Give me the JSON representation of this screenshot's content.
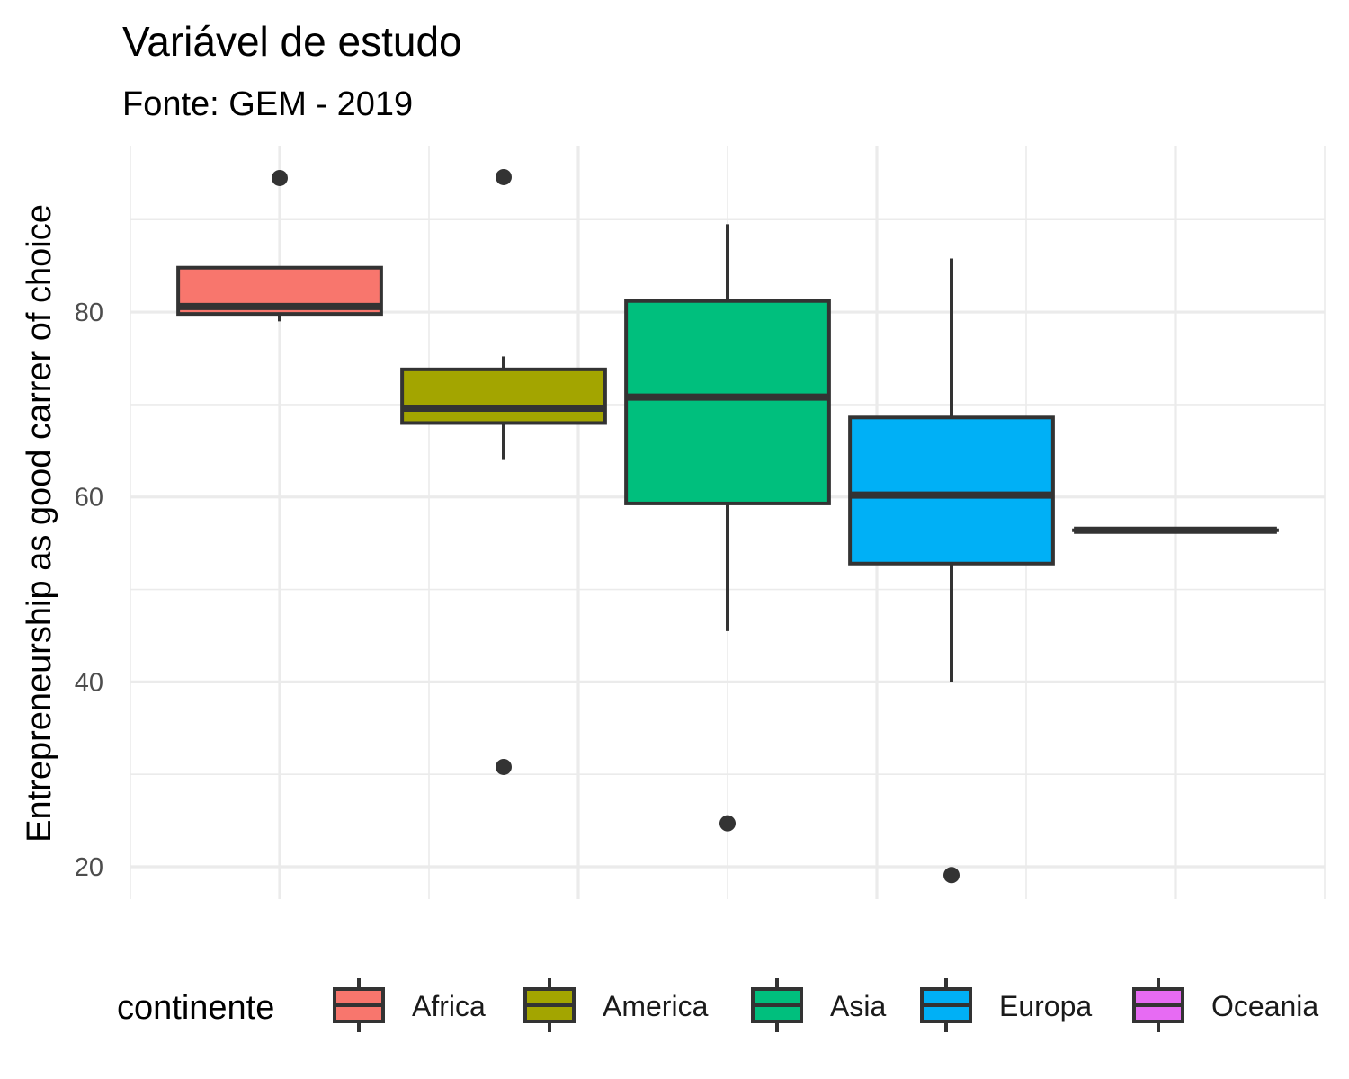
{
  "chart_data": {
    "type": "boxplot",
    "title": "Variável de estudo",
    "subtitle": "Fonte: GEM - 2019",
    "xlabel": "",
    "ylabel": "Entrepreneurship as good carrer of choice",
    "ylim": [
      16.5,
      98
    ],
    "yticks": [
      20,
      40,
      60,
      80
    ],
    "x_ticks_shown": false,
    "grid": true,
    "legend": {
      "title": "continente",
      "position": "bottom",
      "entries": [
        "Africa",
        "America",
        "Asia",
        "Europa",
        "Oceania"
      ]
    },
    "series": [
      {
        "name": "Africa",
        "color": "#F8766D",
        "x_center": 0.5,
        "width": 0.68,
        "whisker_low": 79.0,
        "q1": 79.8,
        "median": 80.6,
        "q3": 84.8,
        "whisker_high": 84.8,
        "outliers": [
          94.5
        ]
      },
      {
        "name": "America",
        "color": "#A3A500",
        "x_center": 1.25,
        "width": 0.68,
        "whisker_low": 64.0,
        "q1": 68.0,
        "median": 69.6,
        "q3": 73.8,
        "whisker_high": 75.2,
        "outliers": [
          94.6,
          30.8
        ]
      },
      {
        "name": "Asia",
        "color": "#00BF7D",
        "x_center": 2.0,
        "width": 0.68,
        "whisker_low": 45.5,
        "q1": 59.3,
        "median": 70.8,
        "q3": 81.2,
        "whisker_high": 89.5,
        "outliers": [
          24.7
        ]
      },
      {
        "name": "Europa",
        "color": "#00B0F6",
        "x_center": 2.75,
        "width": 0.68,
        "whisker_low": 40.0,
        "q1": 52.8,
        "median": 60.2,
        "q3": 68.6,
        "whisker_high": 85.8,
        "outliers": [
          19.1
        ]
      },
      {
        "name": "Oceania",
        "color": "#E76BF3",
        "x_center": 3.5,
        "width": 0.68,
        "whisker_low": 56.4,
        "q1": 56.4,
        "median": 56.4,
        "q3": 56.4,
        "whisker_high": 56.4,
        "outliers": []
      }
    ]
  }
}
